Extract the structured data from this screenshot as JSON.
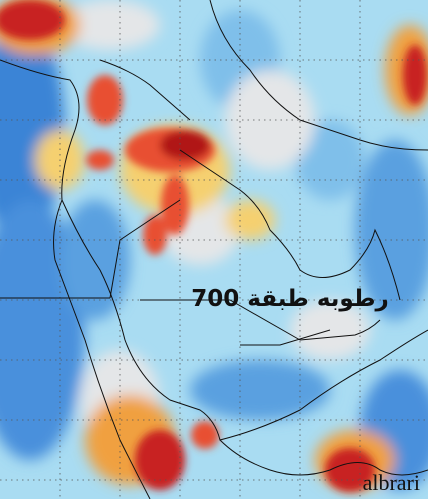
{
  "title": "رطوبه طبقة 700",
  "watermark": "albrari"
}
